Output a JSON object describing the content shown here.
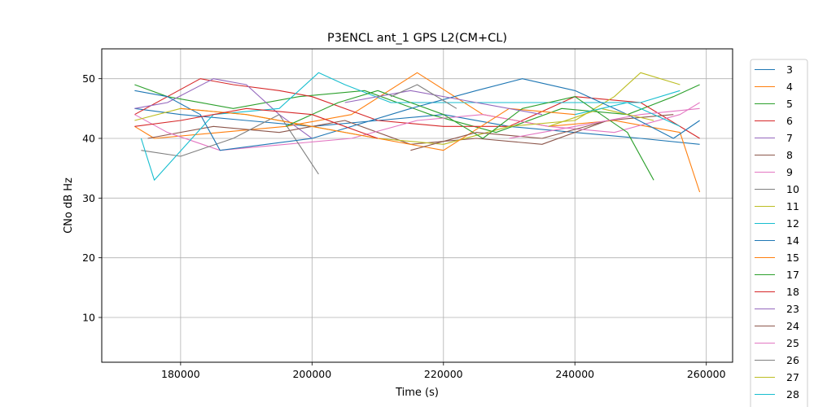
{
  "chart_data": {
    "type": "line",
    "title": "P3ENCL ant_1 GPS L2(CM+CL)",
    "xlabel": "Time (s)",
    "ylabel": "CNo dB Hz",
    "xlim": [
      168000,
      264000
    ],
    "ylim": [
      2.5,
      55
    ],
    "xticks": [
      180000,
      200000,
      220000,
      240000,
      260000
    ],
    "yticks": [
      10,
      20,
      30,
      40,
      50
    ],
    "grid": true,
    "legend_position": "right-outside",
    "series": [
      {
        "name": "3",
        "color": "#1f77b4",
        "x": [
          173000,
          180000,
          190000,
          200000,
          210000,
          220000,
          230000,
          240000,
          250000,
          259000
        ],
        "y": [
          45,
          44,
          43,
          42,
          43,
          44,
          42,
          41,
          40,
          39
        ]
      },
      {
        "name": "4",
        "color": "#ff7f0e",
        "x": [
          173000,
          176000,
          186000,
          196000,
          206000,
          216000,
          226000,
          236000,
          246000,
          256000,
          259000
        ],
        "y": [
          42,
          40,
          41,
          42,
          44,
          51,
          44,
          42,
          43,
          41,
          31
        ]
      },
      {
        "name": "5",
        "color": "#2ca02c",
        "x": [
          173000,
          178000,
          188000,
          198000,
          208000,
          218000,
          228000,
          238000,
          248000,
          255000,
          259000
        ],
        "y": [
          49,
          47,
          45,
          47,
          48,
          44,
          41,
          45,
          44,
          47,
          49
        ]
      },
      {
        "name": "6",
        "color": "#d62728",
        "x": [
          173000,
          178000,
          183000,
          188000,
          195000,
          200000,
          210000,
          220000,
          230000,
          240000,
          250000,
          259000
        ],
        "y": [
          44,
          47,
          50,
          49,
          48,
          47,
          43,
          42,
          42,
          47,
          46,
          40
        ]
      },
      {
        "name": "7",
        "color": "#9467bd",
        "x": [
          173000,
          178000,
          185000,
          190000,
          195000,
          200000
        ],
        "y": [
          45,
          46,
          50,
          49,
          44,
          40
        ]
      },
      {
        "name": "8",
        "color": "#8c564b",
        "x": [
          175000,
          185000,
          195000,
          205000,
          215000,
          225000,
          235000,
          245000,
          255000
        ],
        "y": [
          40,
          42,
          41,
          43,
          39,
          40,
          39,
          43,
          44
        ]
      },
      {
        "name": "9",
        "color": "#e377c2",
        "x": [
          173000,
          178000,
          186000,
          196000,
          206000,
          216000,
          226000,
          236000,
          246000,
          256000,
          259000
        ],
        "y": [
          44,
          41,
          38,
          39,
          40,
          43,
          44,
          42,
          41,
          44,
          46
        ]
      },
      {
        "name": "10",
        "color": "#7f7f7f",
        "x": [
          174000,
          180000,
          188000,
          195000,
          201000
        ],
        "y": [
          38,
          37,
          40,
          44,
          34
        ]
      },
      {
        "name": "11",
        "color": "#bcbd22",
        "x": [
          173000,
          180000,
          190000,
          200000,
          210000,
          220000,
          230000,
          240000,
          246000,
          250000,
          256000
        ],
        "y": [
          43,
          45,
          44,
          42,
          40,
          39,
          42,
          43,
          47,
          51,
          49
        ]
      },
      {
        "name": "12",
        "color": "#17becf",
        "x": [
          174000,
          176000,
          185000,
          195000,
          201000,
          205000,
          212000,
          250000,
          256000
        ],
        "y": [
          40,
          33,
          44,
          45,
          51,
          49,
          46,
          46,
          48
        ]
      },
      {
        "name": "14",
        "color": "#1f77b4",
        "x": [
          173000,
          178000,
          183000,
          186000,
          200000,
          215000,
          225000,
          232000,
          240000,
          248000,
          255000,
          259000
        ],
        "y": [
          48,
          47,
          44,
          38,
          40,
          45,
          48,
          50,
          48,
          44,
          40,
          43
        ]
      },
      {
        "name": "15",
        "color": "#ff7f0e",
        "x": [
          180000,
          190000,
          200000,
          210000,
          220000,
          230000,
          240000
        ],
        "y": [
          45,
          44,
          42,
          40,
          38,
          45,
          44
        ]
      },
      {
        "name": "17",
        "color": "#2ca02c",
        "x": [
          196000,
          204000,
          210000,
          220000,
          226000,
          232000,
          240000,
          248000,
          252000
        ],
        "y": [
          42,
          46,
          48,
          44,
          40,
          45,
          47,
          41,
          33
        ]
      },
      {
        "name": "18",
        "color": "#d62728",
        "x": [
          173000,
          180000,
          190000,
          200000,
          210000
        ],
        "y": [
          42,
          43,
          45,
          44,
          40
        ]
      },
      {
        "name": "23",
        "color": "#9467bd",
        "x": [
          205000,
          215000,
          225000,
          235000
        ],
        "y": [
          46,
          48,
          46,
          44
        ]
      },
      {
        "name": "24",
        "color": "#8c564b",
        "x": [
          215000,
          225000,
          235000,
          245000
        ],
        "y": [
          38,
          41,
          40,
          43
        ]
      },
      {
        "name": "25",
        "color": "#e377c2",
        "x": [
          230000,
          240000,
          250000,
          259000
        ],
        "y": [
          40,
          42,
          44,
          45
        ]
      },
      {
        "name": "26",
        "color": "#7f7f7f",
        "x": [
          212000,
          216000,
          222000
        ],
        "y": [
          47,
          49,
          45
        ]
      },
      {
        "name": "27",
        "color": "#bcbd22",
        "x": [
          236000,
          244000,
          252000
        ],
        "y": [
          42,
          45,
          43
        ]
      },
      {
        "name": "28",
        "color": "#17becf",
        "x": [
          240000,
          248000,
          256000
        ],
        "y": [
          44,
          46,
          42
        ]
      }
    ]
  }
}
